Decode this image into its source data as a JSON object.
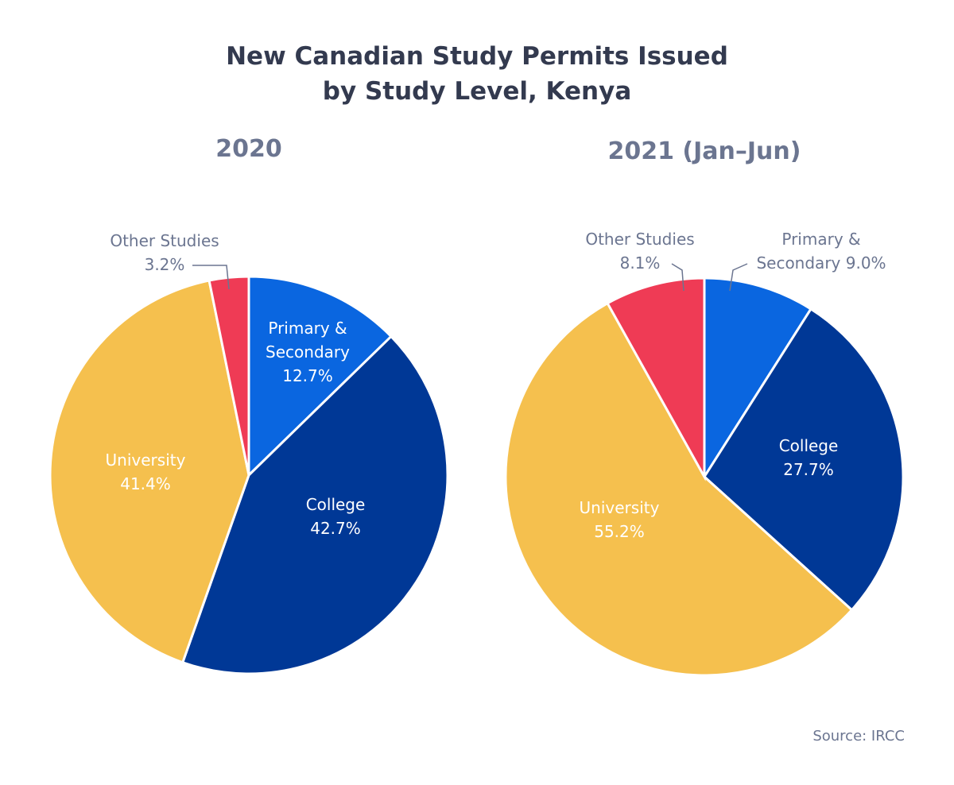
{
  "title": [
    "New Canadian Study Permits Issued",
    "by Study Level, Kenya"
  ],
  "source": "Source: IRCC",
  "chart_data": [
    {
      "type": "pie",
      "title": "2020",
      "categories": [
        "Primary & Secondary",
        "College",
        "University",
        "Other Studies"
      ],
      "values": [
        12.7,
        42.7,
        41.4,
        3.2
      ],
      "value_labels": [
        "12.7%",
        "42.7%",
        "41.4%",
        "3.2%"
      ],
      "colors": [
        "#0a66e0",
        "#003896",
        "#f5c04e",
        "#ef3b55"
      ]
    },
    {
      "type": "pie",
      "title": "2021 (Jan–Jun)",
      "categories": [
        "Primary & Secondary",
        "College",
        "University",
        "Other Studies"
      ],
      "values": [
        9.0,
        27.7,
        55.2,
        8.1
      ],
      "value_labels": [
        "9.0%",
        "27.7%",
        "55.2%",
        "8.1%"
      ],
      "colors": [
        "#0a66e0",
        "#003896",
        "#f5c04e",
        "#ef3b55"
      ]
    }
  ]
}
